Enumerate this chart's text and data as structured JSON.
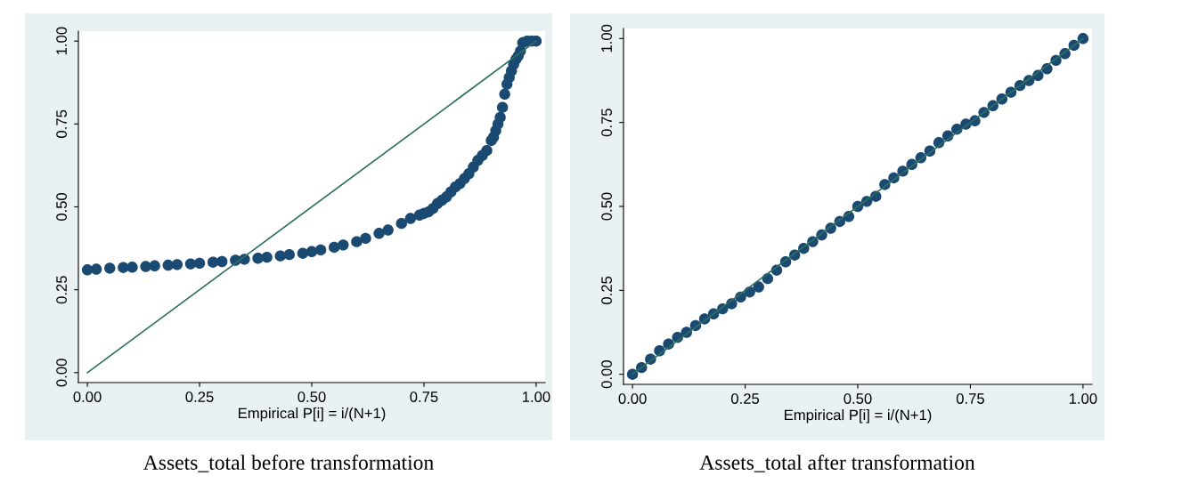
{
  "chart_data": [
    {
      "type": "scatter",
      "xlabel": "Empirical P[i] = i/(N+1)",
      "xlim": [
        -0.02,
        1.02
      ],
      "ylim": [
        -0.03,
        1.03
      ],
      "xticks": [
        {
          "value": 0,
          "label": "0.00"
        },
        {
          "value": 0.25,
          "label": "0.25"
        },
        {
          "value": 0.5,
          "label": "0.50"
        },
        {
          "value": 0.75,
          "label": "0.75"
        },
        {
          "value": 1,
          "label": "1.00"
        }
      ],
      "yticks": [
        {
          "value": 0,
          "label": "0.00"
        },
        {
          "value": 0.25,
          "label": "0.25"
        },
        {
          "value": 0.5,
          "label": "0.50"
        },
        {
          "value": 0.75,
          "label": "0.75"
        },
        {
          "value": 1,
          "label": "1.00"
        }
      ],
      "grid": false,
      "annotations": [
        "Assets_total before transformation"
      ],
      "series": [
        {
          "marker": "circle",
          "color": "#1a4a72",
          "x": [
            0,
            0.02,
            0.05,
            0.08,
            0.1,
            0.13,
            0.15,
            0.18,
            0.2,
            0.23,
            0.25,
            0.28,
            0.3,
            0.33,
            0.35,
            0.38,
            0.4,
            0.43,
            0.45,
            0.48,
            0.5,
            0.52,
            0.55,
            0.57,
            0.6,
            0.62,
            0.65,
            0.67,
            0.7,
            0.72,
            0.74,
            0.75,
            0.76,
            0.77,
            0.78,
            0.79,
            0.8,
            0.81,
            0.82,
            0.83,
            0.84,
            0.85,
            0.86,
            0.87,
            0.88,
            0.89,
            0.9,
            0.905,
            0.91,
            0.915,
            0.92,
            0.925,
            0.93,
            0.935,
            0.94,
            0.945,
            0.95,
            0.955,
            0.96,
            0.965,
            0.97,
            0.98,
            0.99,
            1.0
          ],
          "values": [
            0.31,
            0.312,
            0.315,
            0.317,
            0.318,
            0.32,
            0.322,
            0.324,
            0.326,
            0.328,
            0.33,
            0.333,
            0.335,
            0.339,
            0.342,
            0.345,
            0.348,
            0.352,
            0.356,
            0.36,
            0.365,
            0.37,
            0.378,
            0.385,
            0.395,
            0.405,
            0.42,
            0.43,
            0.45,
            0.465,
            0.475,
            0.48,
            0.485,
            0.495,
            0.51,
            0.52,
            0.53,
            0.545,
            0.56,
            0.57,
            0.585,
            0.6,
            0.62,
            0.64,
            0.655,
            0.67,
            0.7,
            0.71,
            0.73,
            0.75,
            0.77,
            0.8,
            0.84,
            0.87,
            0.89,
            0.91,
            0.93,
            0.945,
            0.955,
            0.97,
            0.995,
            1.0,
            1.0,
            1.0
          ]
        },
        {
          "type": "line",
          "color": "#2e7060",
          "x": [
            0,
            1
          ],
          "values": [
            0,
            1
          ]
        }
      ]
    },
    {
      "type": "scatter",
      "xlabel": "Empirical P[i] = i/(N+1)",
      "xlim": [
        -0.02,
        1.02
      ],
      "ylim": [
        -0.03,
        1.03
      ],
      "xticks": [
        {
          "value": 0,
          "label": "0.00"
        },
        {
          "value": 0.25,
          "label": "0.25"
        },
        {
          "value": 0.5,
          "label": "0.50"
        },
        {
          "value": 0.75,
          "label": "0.75"
        },
        {
          "value": 1,
          "label": "1.00"
        }
      ],
      "yticks": [
        {
          "value": 0,
          "label": "0.00"
        },
        {
          "value": 0.25,
          "label": "0.25"
        },
        {
          "value": 0.5,
          "label": "0.50"
        },
        {
          "value": 0.75,
          "label": "0.75"
        },
        {
          "value": 1,
          "label": "1.00"
        }
      ],
      "grid": false,
      "annotations": [
        "Assets_total after transformation"
      ],
      "series": [
        {
          "marker": "circle",
          "color": "#1a4a72",
          "x": [
            0,
            0.02,
            0.04,
            0.06,
            0.08,
            0.1,
            0.12,
            0.14,
            0.16,
            0.18,
            0.2,
            0.22,
            0.24,
            0.26,
            0.28,
            0.3,
            0.32,
            0.34,
            0.36,
            0.38,
            0.4,
            0.42,
            0.44,
            0.46,
            0.48,
            0.5,
            0.52,
            0.54,
            0.56,
            0.58,
            0.6,
            0.62,
            0.64,
            0.66,
            0.68,
            0.7,
            0.72,
            0.74,
            0.76,
            0.78,
            0.8,
            0.82,
            0.84,
            0.86,
            0.88,
            0.9,
            0.92,
            0.94,
            0.96,
            0.98,
            1.0
          ],
          "values": [
            0,
            0.02,
            0.045,
            0.07,
            0.09,
            0.11,
            0.125,
            0.145,
            0.165,
            0.18,
            0.195,
            0.21,
            0.23,
            0.245,
            0.26,
            0.285,
            0.31,
            0.335,
            0.355,
            0.375,
            0.395,
            0.415,
            0.435,
            0.455,
            0.47,
            0.5,
            0.515,
            0.53,
            0.565,
            0.585,
            0.605,
            0.625,
            0.645,
            0.665,
            0.69,
            0.71,
            0.73,
            0.745,
            0.755,
            0.78,
            0.8,
            0.82,
            0.84,
            0.86,
            0.875,
            0.89,
            0.91,
            0.935,
            0.955,
            0.98,
            1.0
          ]
        },
        {
          "type": "line",
          "color": "#2e7060",
          "x": [
            0,
            1
          ],
          "values": [
            0,
            1
          ]
        }
      ]
    }
  ]
}
